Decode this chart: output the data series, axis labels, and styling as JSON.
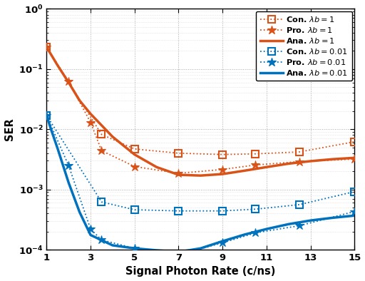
{
  "orange_color": "#D95319",
  "blue_color": "#0072BD",
  "xlabel": "Signal Photon Rate (c/ns)",
  "ylabel": "SER",
  "xlim": [
    1,
    15
  ],
  "ylim": [
    0.0001,
    1.0
  ],
  "x_ticks": [
    1,
    3,
    5,
    7,
    9,
    11,
    13,
    15
  ],
  "con_lb1_x": [
    1,
    3.5,
    5,
    7,
    9,
    10.5,
    12.5,
    15
  ],
  "con_lb1_y": [
    0.23,
    0.0082,
    0.0047,
    0.004,
    0.0038,
    0.0039,
    0.0042,
    0.0062
  ],
  "pro_lb1_x": [
    1,
    2,
    3,
    3.5,
    5,
    7,
    9,
    10.5,
    12.5,
    15
  ],
  "pro_lb1_y": [
    0.23,
    0.062,
    0.013,
    0.0044,
    0.0024,
    0.00185,
    0.00215,
    0.00255,
    0.0029,
    0.0032
  ],
  "ana_lb1_x": [
    1,
    1.2,
    1.5,
    2,
    2.5,
    3,
    4,
    5,
    6,
    7,
    8,
    9,
    10,
    11,
    12,
    13,
    14,
    15
  ],
  "ana_lb1_y": [
    0.23,
    0.175,
    0.115,
    0.06,
    0.03,
    0.018,
    0.0075,
    0.0038,
    0.00235,
    0.00175,
    0.0017,
    0.0018,
    0.00205,
    0.00235,
    0.00268,
    0.00295,
    0.00318,
    0.00335
  ],
  "con_lb001_x": [
    1,
    3.5,
    5,
    7,
    9,
    10.5,
    12.5,
    15
  ],
  "con_lb001_y": [
    0.017,
    0.00062,
    0.00046,
    0.00044,
    0.00044,
    0.00047,
    0.00056,
    0.00092
  ],
  "pro_lb001_x": [
    1,
    2,
    3,
    3.5,
    5,
    7,
    9,
    10.5,
    12.5,
    15
  ],
  "pro_lb001_y": [
    0.017,
    0.0025,
    0.00022,
    0.000145,
    0.000105,
    8.2e-05,
    0.00013,
    0.00019,
    0.00025,
    0.00043
  ],
  "ana_lb001_x": [
    1,
    1.2,
    1.5,
    2,
    2.5,
    3,
    4,
    5,
    6,
    7,
    8,
    9,
    10,
    11,
    12,
    13,
    14,
    15
  ],
  "ana_lb001_y": [
    0.017,
    0.01,
    0.0048,
    0.0013,
    0.00042,
    0.000175,
    0.000118,
    0.000105,
    9.75e-05,
    9.15e-05,
    0.000105,
    0.000138,
    0.000178,
    0.00022,
    0.000265,
    0.000305,
    0.000338,
    0.000368
  ]
}
